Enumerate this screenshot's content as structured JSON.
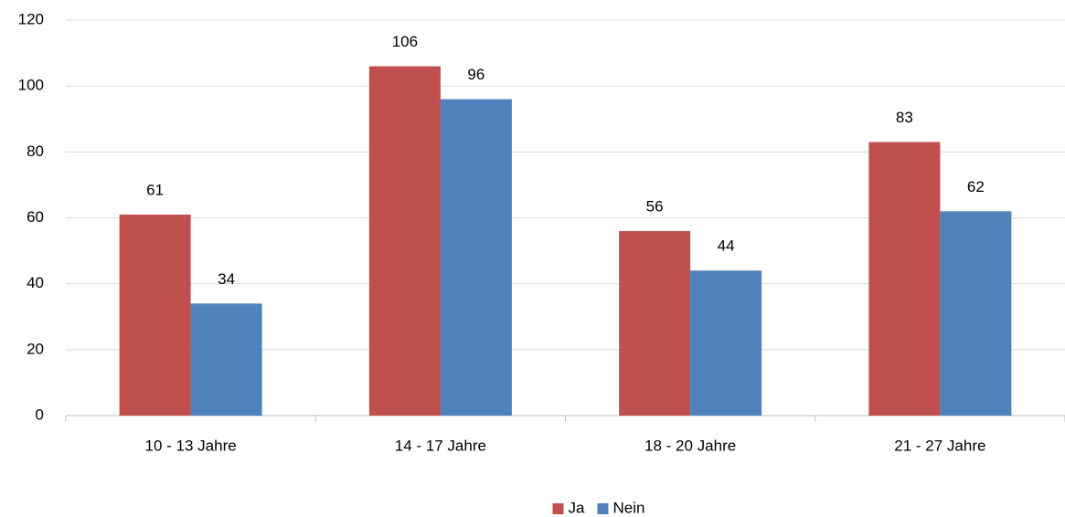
{
  "chart_data": {
    "type": "bar",
    "categories": [
      "10 - 13 Jahre",
      "14 - 17 Jahre",
      "18 - 20 Jahre",
      "21 - 27 Jahre"
    ],
    "series": [
      {
        "name": "Ja",
        "color": "#c0504d",
        "values": [
          61,
          106,
          56,
          83
        ]
      },
      {
        "name": "Nein",
        "color": "#4f81bd",
        "values": [
          34,
          96,
          44,
          62
        ]
      }
    ],
    "ylim": [
      0,
      120
    ],
    "yticks": [
      0,
      20,
      40,
      60,
      80,
      100,
      120
    ],
    "grid": true,
    "legend": "bottom"
  }
}
